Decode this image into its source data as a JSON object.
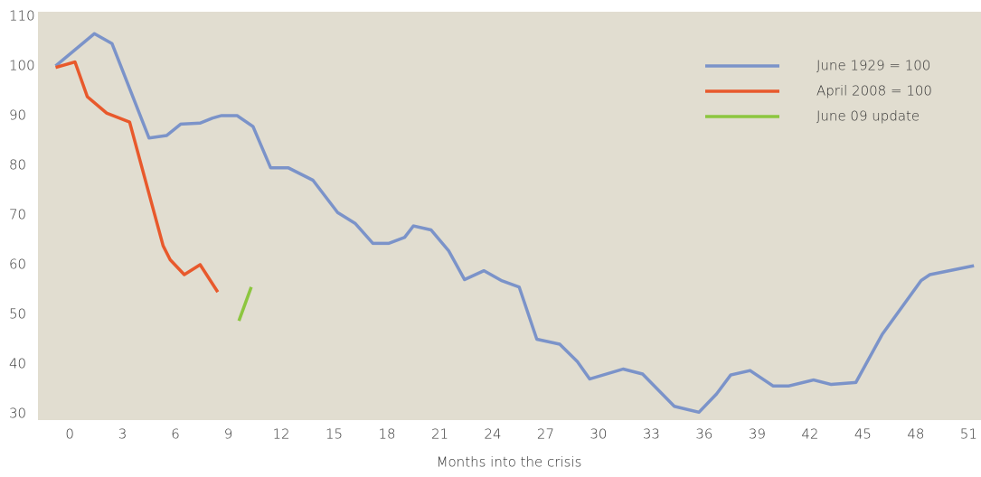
{
  "chart_data": {
    "type": "line",
    "x_label": "Months into the crisis",
    "xlim": [
      -1.8,
      51.7
    ],
    "xticks": [
      0,
      3,
      6,
      9,
      12,
      15,
      18,
      21,
      24,
      27,
      30,
      33,
      36,
      39,
      42,
      45,
      48,
      51
    ],
    "ylim": [
      30,
      110
    ],
    "yticks": [
      30,
      40,
      50,
      60,
      70,
      80,
      90,
      100,
      110
    ],
    "legend": "top-right",
    "series": [
      {
        "name": "June 1929 = 100",
        "color": "#7b93c9",
        "x": [
          -0.8,
          1.4,
          2.4,
          4.5,
          5.5,
          6.3,
          7.4,
          8.1,
          8.6,
          9.5,
          10.4,
          11.4,
          12.4,
          13.8,
          15.2,
          16.2,
          17.2,
          18.1,
          19.0,
          19.5,
          20.5,
          21.5,
          22.4,
          23.5,
          24.5,
          25.5,
          26.5,
          27.8,
          28.8,
          29.5,
          31.4,
          32.5,
          34.3,
          35.7,
          36.7,
          37.5,
          38.6,
          39.9,
          40.8,
          42.2,
          43.2,
          44.6,
          46.1,
          48.3,
          48.8,
          51.3
        ],
        "values": [
          100,
          106.5,
          104.5,
          85.5,
          86,
          88.3,
          88.5,
          89.5,
          90,
          90,
          87.8,
          79.5,
          79.5,
          77,
          70.5,
          68.3,
          64.3,
          64.3,
          65.5,
          67.8,
          67,
          62.8,
          57,
          58.8,
          56.8,
          55.5,
          45,
          44,
          40.5,
          37,
          39,
          38,
          31.5,
          30.3,
          34,
          37.8,
          38.7,
          35.6,
          35.6,
          36.8,
          35.9,
          36.3,
          46,
          56.8,
          58,
          59.8
        ]
      },
      {
        "name": "April 2008 = 100",
        "color": "#e8592c",
        "x": [
          -0.8,
          0.3,
          1.0,
          2.1,
          3.4,
          5.3,
          5.7,
          6.5,
          7.4,
          8.4
        ],
        "values": [
          99.7,
          100.8,
          93.8,
          90.5,
          88.7,
          63.8,
          61,
          58,
          60,
          54.5
        ]
      },
      {
        "name": "June 09 update",
        "color": "#8cc63f",
        "x": [
          9.6,
          10.3
        ],
        "values": [
          48.7,
          55.5
        ]
      }
    ]
  }
}
